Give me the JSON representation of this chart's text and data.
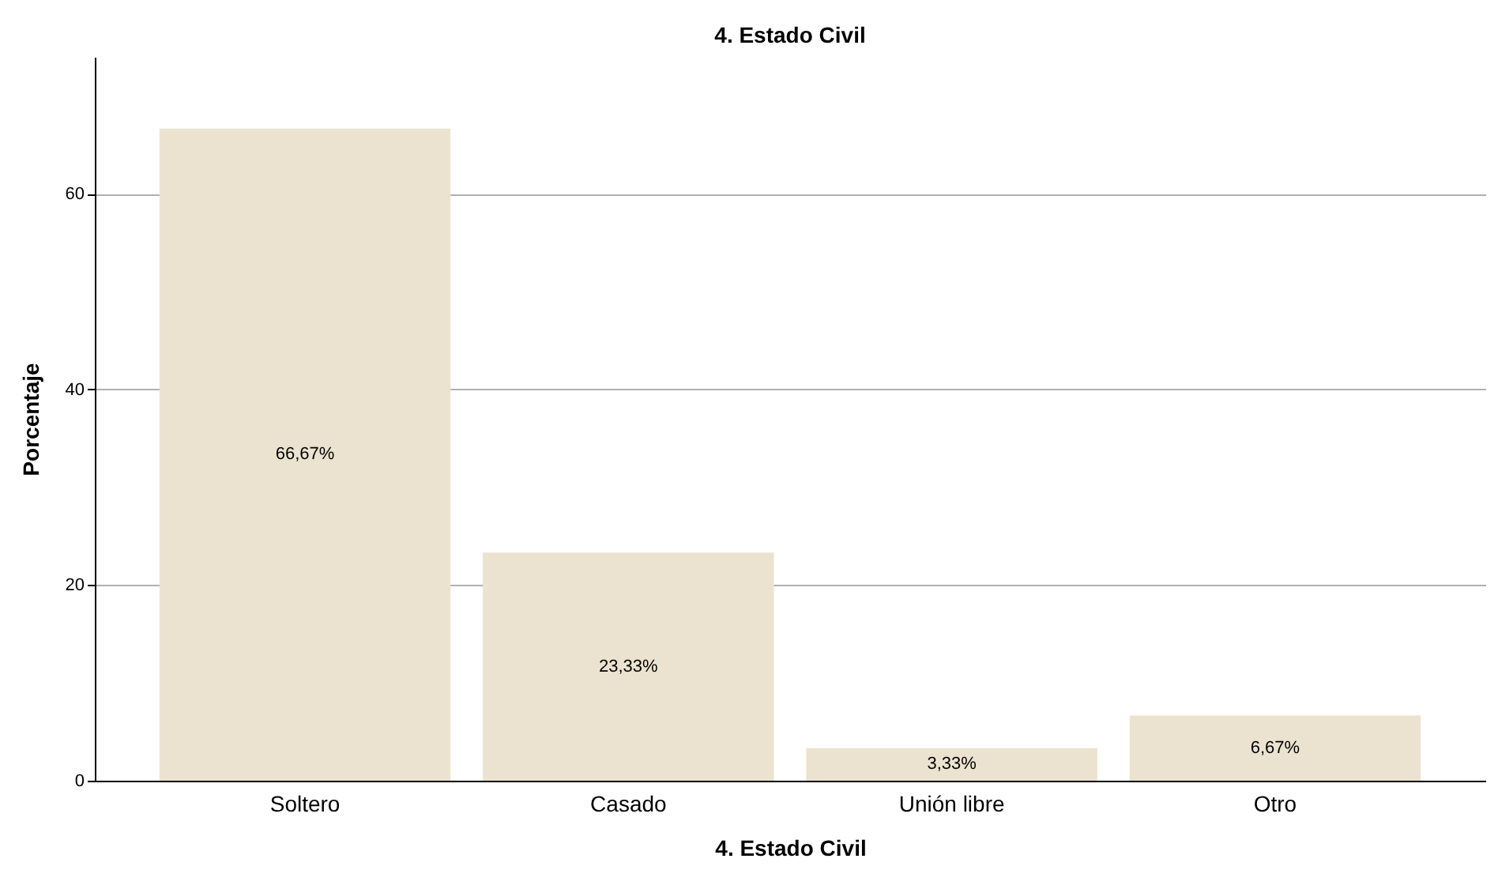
{
  "chart_data": {
    "type": "bar",
    "title": "4. Estado Civil",
    "xlabel": "4. Estado Civil",
    "ylabel": "Porcentaje",
    "categories": [
      "Soltero",
      "Casado",
      "Unión libre",
      "Otro"
    ],
    "values": [
      66.67,
      23.33,
      3.33,
      6.67
    ],
    "value_labels": [
      "66,67%",
      "23,33%",
      "3,33%",
      "6,67%"
    ],
    "color": "#ebe3cf",
    "ylim": [
      0,
      74
    ],
    "yticks": [
      0,
      20,
      40,
      60
    ],
    "grid": "y"
  }
}
